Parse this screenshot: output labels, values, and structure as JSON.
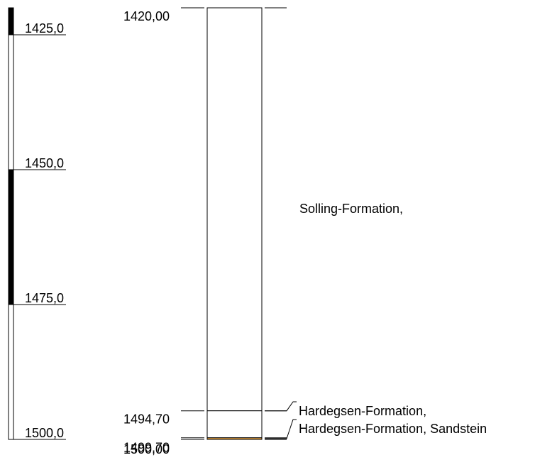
{
  "depth_scale": {
    "ticks": [
      {
        "depth": 1425.0,
        "label": "1425,0"
      },
      {
        "depth": 1450.0,
        "label": "1450,0"
      },
      {
        "depth": 1475.0,
        "label": "1475,0"
      },
      {
        "depth": 1500.0,
        "label": "1500,0"
      }
    ],
    "filled_bands": [
      {
        "from": 1420.0,
        "to": 1425.0
      },
      {
        "from": 1450.0,
        "to": 1475.0
      }
    ]
  },
  "boundaries": [
    {
      "depth": 1420.0,
      "label": "1420,00"
    },
    {
      "depth": 1494.7,
      "label": "1494,70"
    },
    {
      "depth": 1499.7,
      "label": "1499,70"
    },
    {
      "depth": 1500.0,
      "label": "1500,00"
    }
  ],
  "units": [
    {
      "top": 1420.0,
      "bottom": 1494.7,
      "label": "Solling-Formation,",
      "color": "#ffffff"
    },
    {
      "top": 1494.7,
      "bottom": 1499.7,
      "label": "Hardegsen-Formation,",
      "color": "#ffffff"
    },
    {
      "top": 1499.7,
      "bottom": 1500.0,
      "label": "Hardegsen-Formation, Sandstein",
      "color": "#e8a23c"
    }
  ],
  "colors": {
    "line": "#000000",
    "fill": "#000000",
    "sandstone": "#e8a23c"
  }
}
